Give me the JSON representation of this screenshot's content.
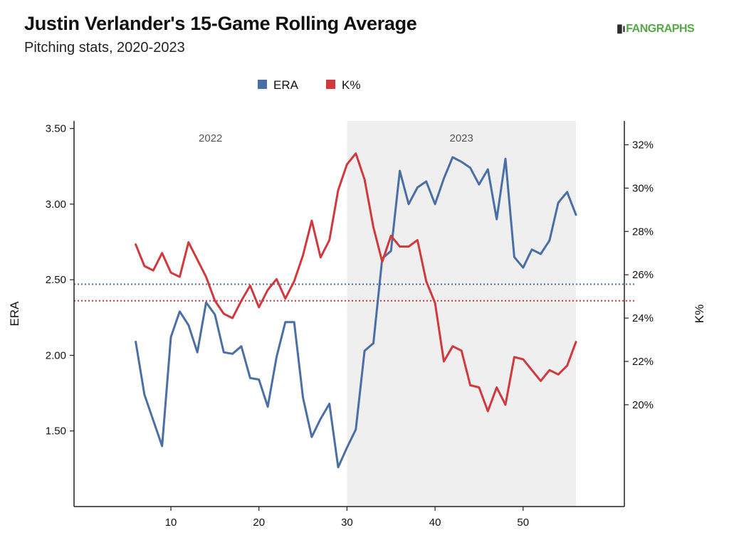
{
  "header": {
    "title": "Justin Verlander's 15-Game Rolling Average",
    "subtitle": "Pitching stats, 2020-2023",
    "logo_text": "FANGRAPHS"
  },
  "chart_data": {
    "type": "line",
    "x_ticks": [
      10,
      20,
      30,
      40,
      50
    ],
    "xlim": [
      -1,
      61.5
    ],
    "y_left": {
      "label": "ERA",
      "lim": [
        1.0,
        3.55
      ],
      "ticks": [
        "3.50",
        "3.00",
        "2.50",
        "2.00",
        "1.50"
      ],
      "tick_values": [
        3.5,
        3.0,
        2.5,
        2.0,
        1.5
      ]
    },
    "y_right": {
      "label": "K%",
      "lim": [
        15.3,
        33.1
      ],
      "ticks": [
        "32%",
        "30%",
        "28%",
        "26%",
        "24%",
        "22%",
        "20%"
      ],
      "tick_values": [
        32,
        30,
        28,
        26,
        24,
        22,
        20
      ]
    },
    "regions": [
      {
        "label": "2022",
        "x_start": -1,
        "x_end": 30,
        "shaded": false
      },
      {
        "label": "2023",
        "x_start": 30,
        "x_end": 56,
        "shaded": true
      }
    ],
    "legend": {
      "position": "top-center",
      "items": [
        {
          "name": "ERA",
          "color": "#4a6fa5"
        },
        {
          "name": "K%",
          "color": "#d0393d"
        }
      ]
    },
    "reference_lines": [
      {
        "series": "ERA",
        "axis": "left",
        "value": 2.47,
        "color": "#4a6fa5",
        "style": "dotted"
      },
      {
        "series": "K%",
        "axis": "right",
        "value": 24.8,
        "color": "#d0393d",
        "style": "dotted"
      }
    ],
    "series": [
      {
        "name": "ERA",
        "axis": "left",
        "color": "#4a6fa5",
        "x": [
          6,
          7,
          8,
          9,
          10,
          11,
          12,
          13,
          14,
          15,
          16,
          17,
          18,
          19,
          20,
          21,
          22,
          23,
          24,
          25,
          26,
          27,
          28,
          29,
          30,
          31,
          32,
          33,
          34,
          35,
          36,
          37,
          38,
          39,
          40,
          41,
          42,
          43,
          44,
          45,
          46,
          47,
          48,
          49,
          50,
          51,
          52,
          53,
          54,
          55,
          56
        ],
        "values": [
          2.09,
          1.74,
          1.57,
          1.4,
          2.12,
          2.29,
          2.2,
          2.02,
          2.35,
          2.27,
          2.02,
          2.01,
          2.06,
          1.85,
          1.84,
          1.66,
          1.99,
          2.22,
          2.22,
          1.72,
          1.46,
          1.58,
          1.68,
          1.26,
          1.39,
          1.51,
          2.03,
          2.08,
          2.64,
          2.69,
          3.22,
          3.0,
          3.11,
          3.15,
          3.0,
          3.17,
          3.31,
          3.28,
          3.24,
          3.13,
          3.23,
          2.9,
          3.3,
          2.65,
          2.58,
          2.7,
          2.67,
          2.76,
          3.01,
          3.08,
          2.93
        ]
      },
      {
        "name": "K%",
        "axis": "right",
        "color": "#d0393d",
        "x": [
          6,
          7,
          8,
          9,
          10,
          11,
          12,
          13,
          14,
          15,
          16,
          17,
          18,
          19,
          20,
          21,
          22,
          23,
          24,
          25,
          26,
          27,
          28,
          29,
          30,
          31,
          32,
          33,
          34,
          35,
          36,
          37,
          38,
          39,
          40,
          41,
          42,
          43,
          44,
          45,
          46,
          47,
          48,
          49,
          50,
          51,
          52,
          53,
          54,
          55,
          56
        ],
        "values": [
          27.4,
          26.4,
          26.2,
          27.0,
          26.1,
          25.9,
          27.5,
          26.7,
          25.9,
          24.8,
          24.2,
          24.0,
          24.8,
          25.5,
          24.5,
          25.3,
          25.8,
          24.9,
          25.7,
          26.9,
          28.5,
          26.8,
          27.6,
          29.9,
          31.1,
          31.6,
          30.4,
          28.2,
          26.6,
          27.8,
          27.3,
          27.3,
          27.6,
          25.7,
          24.7,
          22.0,
          22.7,
          22.5,
          20.9,
          20.8,
          19.7,
          20.8,
          20.0,
          22.2,
          22.1,
          21.6,
          21.1,
          21.6,
          21.4,
          21.8,
          22.9
        ]
      }
    ]
  }
}
